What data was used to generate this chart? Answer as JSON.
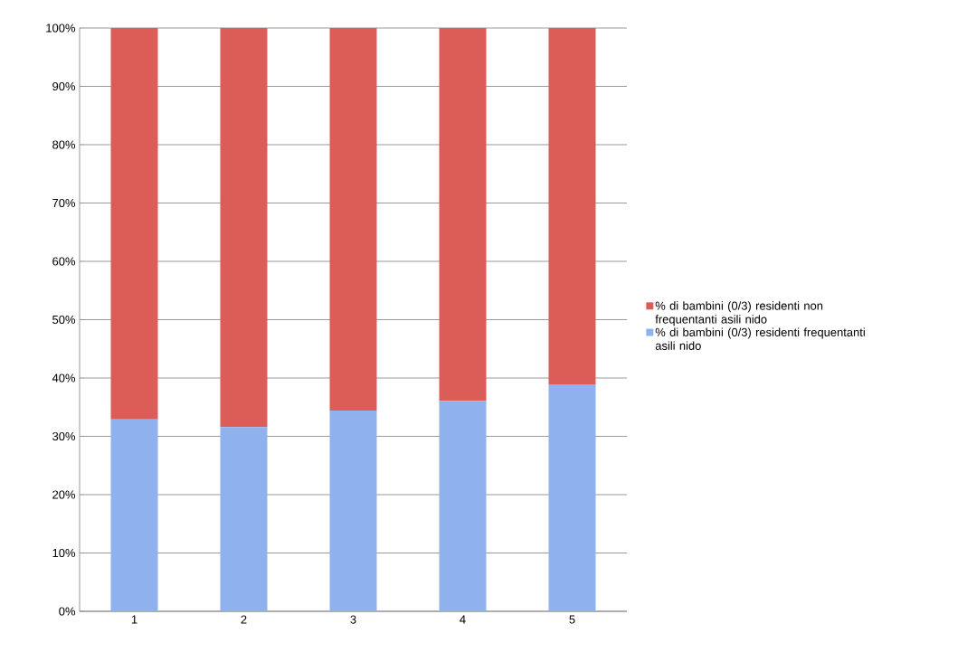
{
  "chart_data": {
    "type": "bar",
    "stacked": true,
    "categories": [
      "1",
      "2",
      "3",
      "4",
      "5"
    ],
    "series": [
      {
        "name": "% di bambini (0/3) residenti frequentanti asili nido",
        "color": "#8fb2ef",
        "values": [
          32.9,
          31.6,
          34.4,
          36.1,
          38.9
        ]
      },
      {
        "name": "% di bambini (0/3) residenti  non frequentanti asili nido",
        "color": "#dc5d58",
        "values": [
          67.1,
          68.4,
          65.6,
          63.9,
          61.1
        ]
      }
    ],
    "ylim": [
      0,
      100
    ],
    "yticks": [
      {
        "value": 0,
        "label": "0%"
      },
      {
        "value": 10,
        "label": "10%"
      },
      {
        "value": 20,
        "label": "20%"
      },
      {
        "value": 30,
        "label": "30%"
      },
      {
        "value": 40,
        "label": "40%"
      },
      {
        "value": 50,
        "label": "50%"
      },
      {
        "value": 60,
        "label": "60%"
      },
      {
        "value": 70,
        "label": "70%"
      },
      {
        "value": 80,
        "label": "80%"
      },
      {
        "value": 90,
        "label": "90%"
      },
      {
        "value": 100,
        "label": "100%"
      }
    ],
    "grid": "y",
    "legend": "right"
  }
}
